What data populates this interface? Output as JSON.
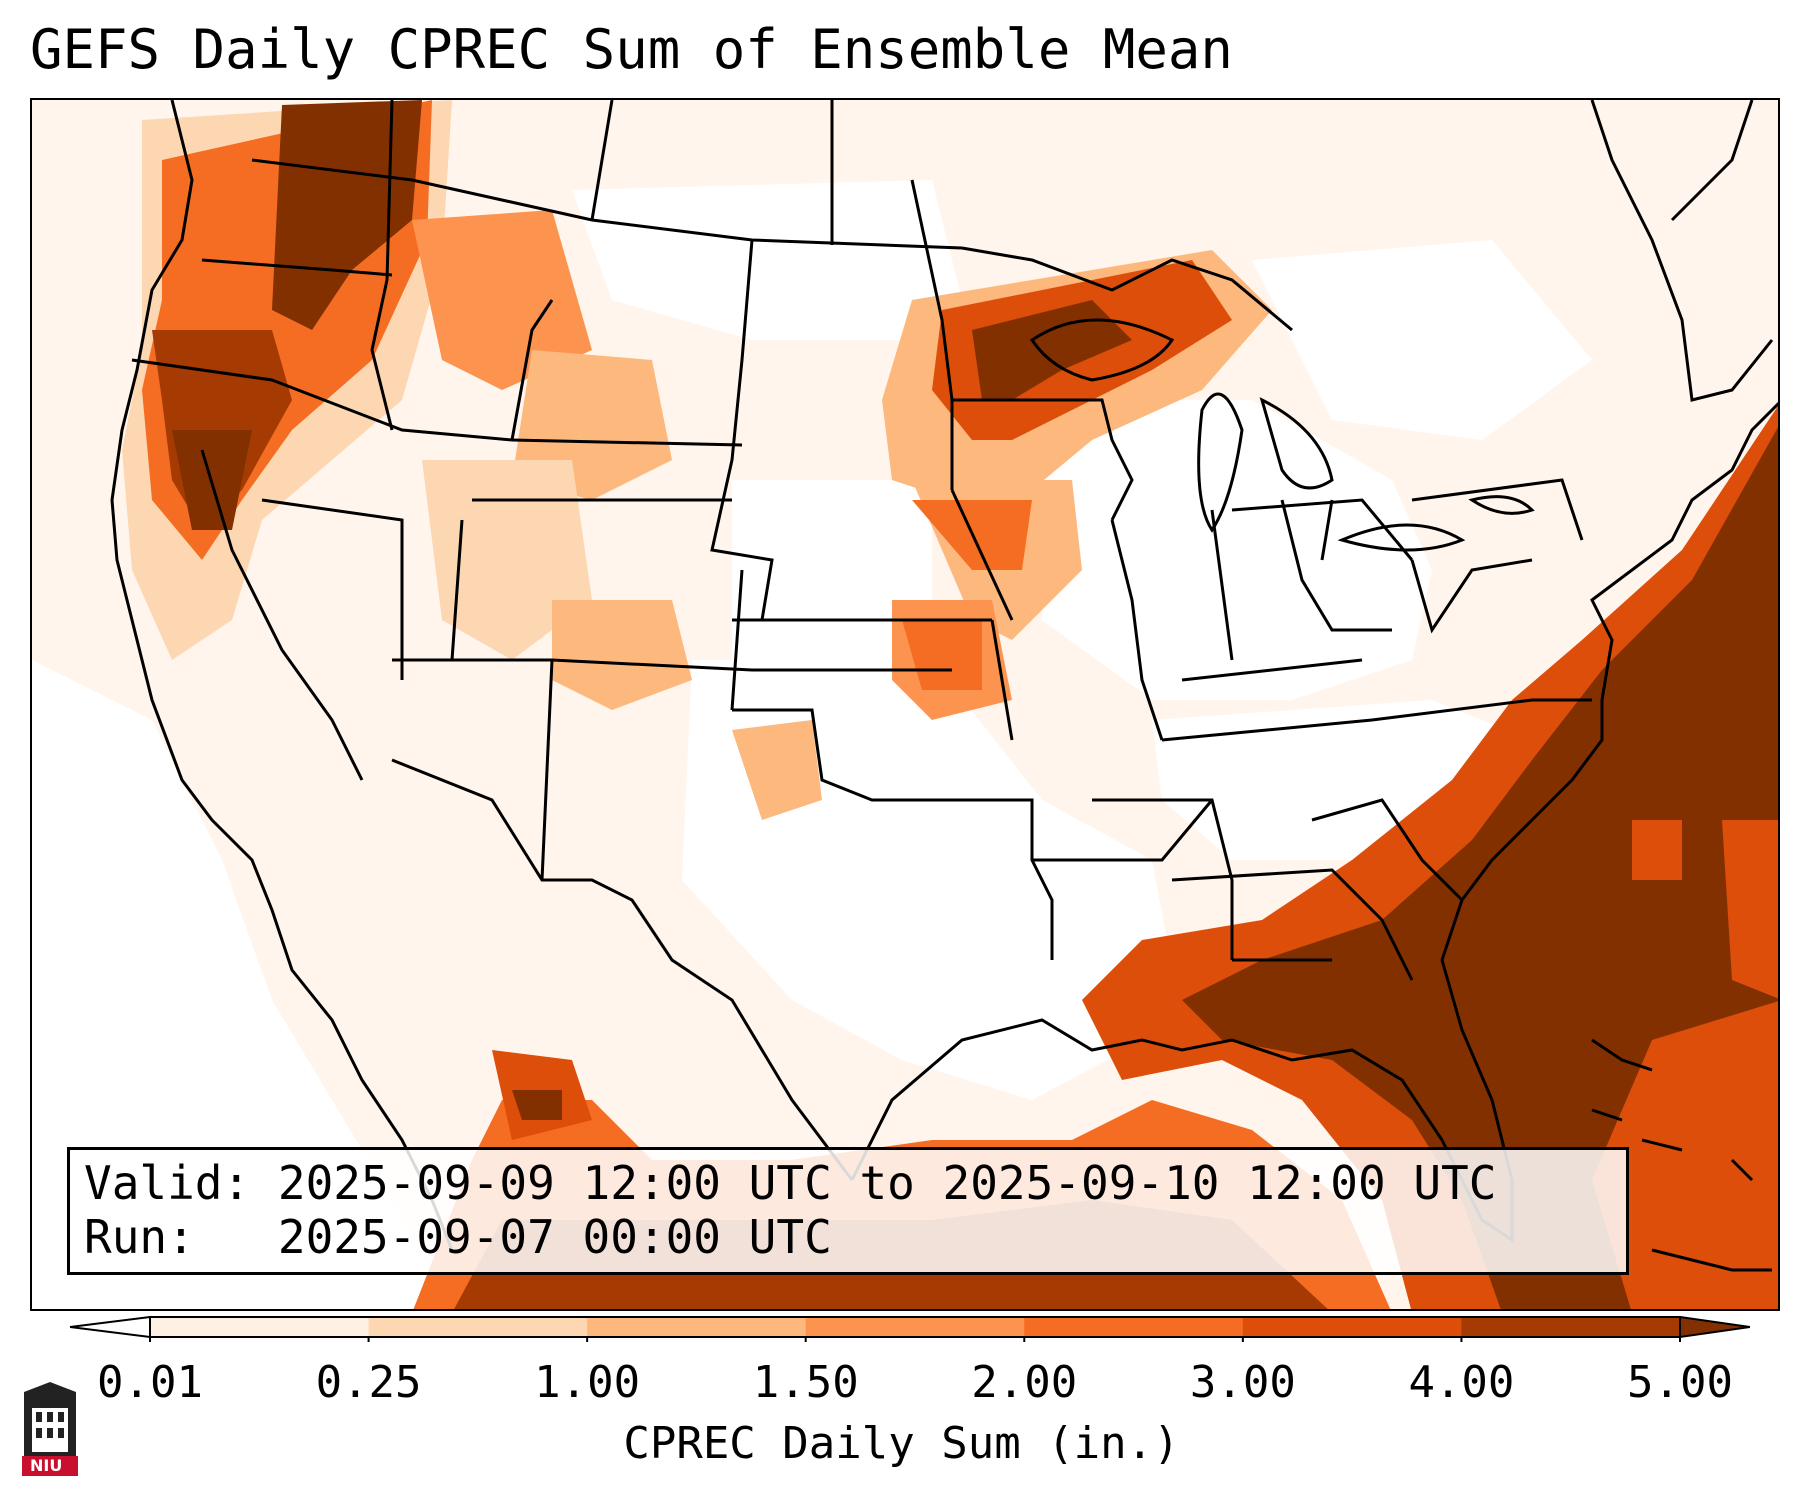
{
  "title": "GEFS Daily CPREC Sum of Ensemble Mean",
  "info": {
    "valid_label": "Valid:",
    "valid_value": "2025-09-09 12:00 UTC to 2025-09-10 12:00 UTC",
    "run_label": "Run:",
    "run_value": "2025-09-07 00:00 UTC"
  },
  "colorbar": {
    "label": "CPREC Daily Sum (in.)",
    "ticks": [
      "0.01",
      "0.25",
      "1.00",
      "1.50",
      "2.00",
      "3.00",
      "4.00",
      "5.00"
    ],
    "colors": [
      "#fef0e2",
      "#fdd7b2",
      "#fdb87e",
      "#fc9450",
      "#f46d22",
      "#dc4e0a",
      "#a53a03"
    ],
    "extend_low_color": "#ffffff",
    "extend_high_color": "#833000"
  },
  "logo": {
    "text": "NIU",
    "name": "niu-logo"
  }
}
